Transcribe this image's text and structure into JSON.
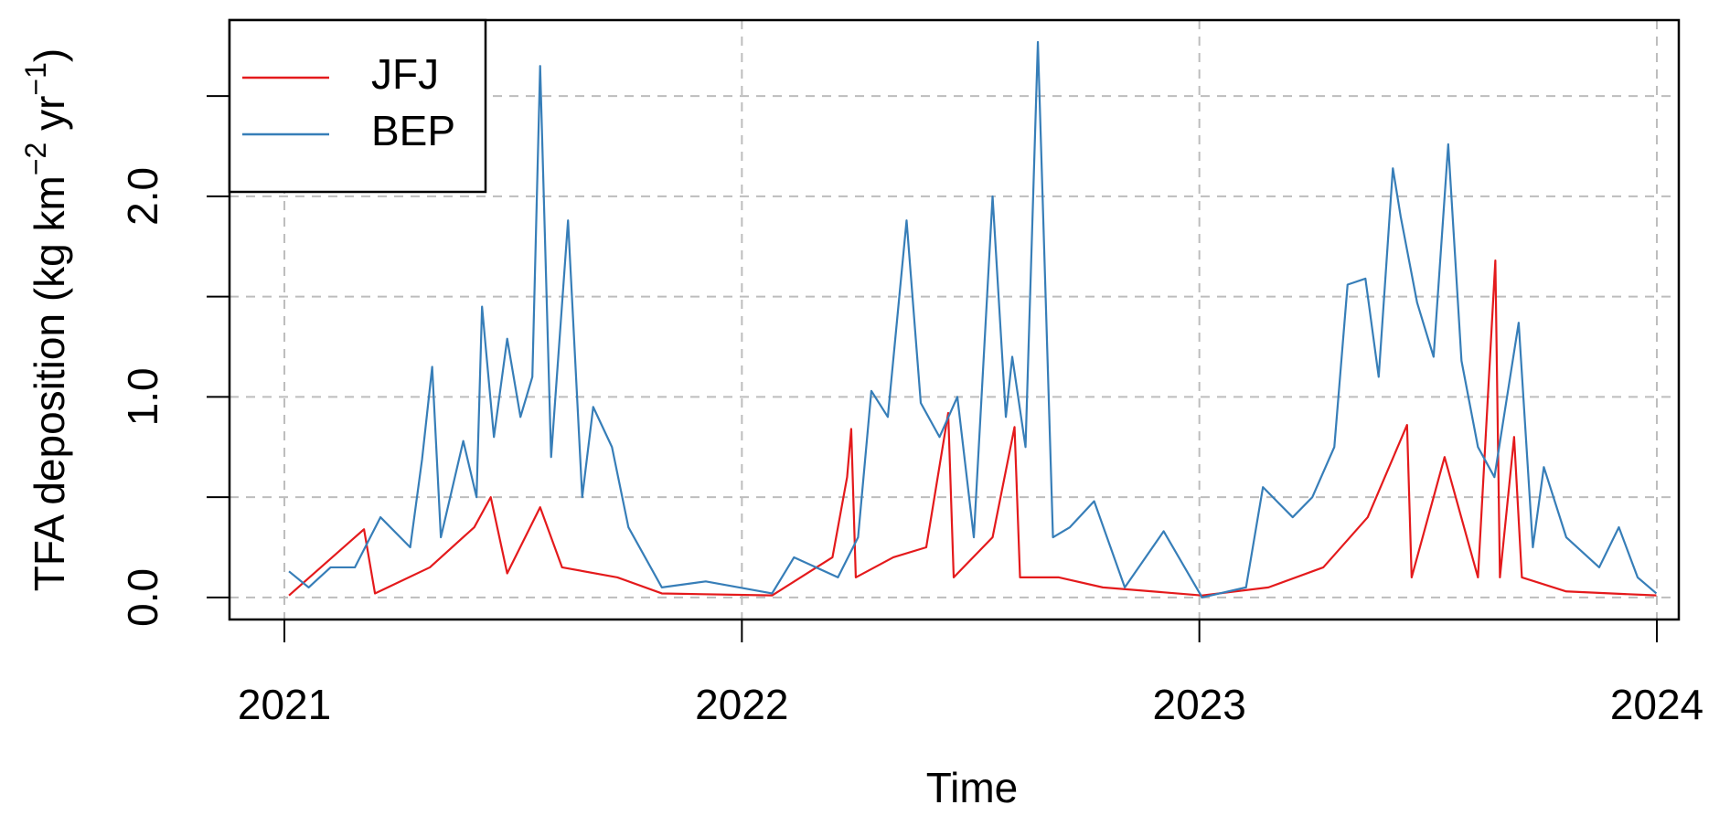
{
  "chart_data": {
    "type": "line",
    "xlabel": "Time",
    "ylabel": {
      "text": "TFA deposition (kg km",
      "sup1": "−2",
      "mid": " yr",
      "sup2": "−1",
      "end": ")"
    },
    "xlim": [
      2020.88,
      2024.048
    ],
    "xticks": [
      2021,
      2022,
      2023,
      2024
    ],
    "ylim": [
      -0.11,
      2.879
    ],
    "yticks": [
      {
        "value": 0,
        "label": "0.0"
      },
      {
        "value": 1,
        "label": "1.0"
      },
      {
        "value": 2,
        "label": "2.0"
      }
    ],
    "yticks_unlabeled": [
      0.5,
      1.5,
      2.5
    ],
    "grid": true,
    "legend": "top-left",
    "series": [
      {
        "name": "JFJ",
        "color": "#e41a1c",
        "x": [
          2021.01,
          2021.174,
          2021.198,
          2021.318,
          2021.415,
          2021.451,
          2021.487,
          2021.559,
          2021.607,
          2021.728,
          2021.825,
          2022.066,
          2022.198,
          2022.23,
          2022.239,
          2022.249,
          2022.331,
          2022.403,
          2022.451,
          2022.463,
          2022.548,
          2022.596,
          2022.608,
          2022.693,
          2022.789,
          2023.006,
          2023.151,
          2023.271,
          2023.368,
          2023.454,
          2023.464,
          2023.536,
          2023.609,
          2023.647,
          2023.657,
          2023.688,
          2023.705,
          2023.802,
          2023.999
        ],
        "values": [
          0.01,
          0.34,
          0.02,
          0.15,
          0.35,
          0.5,
          0.12,
          0.45,
          0.15,
          0.1,
          0.02,
          0.01,
          0.2,
          0.6,
          0.84,
          0.1,
          0.2,
          0.25,
          0.92,
          0.1,
          0.3,
          0.85,
          0.1,
          0.1,
          0.05,
          0.01,
          0.05,
          0.15,
          0.4,
          0.86,
          0.1,
          0.7,
          0.1,
          1.68,
          0.1,
          0.8,
          0.1,
          0.03,
          0.01
        ]
      },
      {
        "name": "BEP",
        "color": "#377eb8",
        "x": [
          2021.01,
          2021.053,
          2021.101,
          2021.154,
          2021.21,
          2021.275,
          2021.301,
          2021.323,
          2021.342,
          2021.391,
          2021.42,
          2021.432,
          2021.458,
          2021.487,
          2021.516,
          2021.542,
          2021.559,
          2021.583,
          2021.62,
          2021.651,
          2021.675,
          2021.716,
          2021.752,
          2021.825,
          2021.921,
          2022.066,
          2022.114,
          2022.21,
          2022.254,
          2022.283,
          2022.319,
          2022.36,
          2022.391,
          2022.432,
          2022.471,
          2022.507,
          2022.548,
          2022.577,
          2022.591,
          2022.62,
          2022.647,
          2022.68,
          2022.717,
          2022.77,
          2022.837,
          2022.922,
          2023.006,
          2023.102,
          2023.139,
          2023.204,
          2023.247,
          2023.295,
          2023.324,
          2023.363,
          2023.392,
          2023.423,
          2023.44,
          2023.476,
          2023.512,
          2023.544,
          2023.573,
          2023.609,
          2023.645,
          2023.698,
          2023.729,
          2023.753,
          2023.802,
          2023.874,
          2023.917,
          2023.958,
          2023.999
        ],
        "values": [
          0.13,
          0.05,
          0.15,
          0.15,
          0.4,
          0.25,
          0.69,
          1.15,
          0.3,
          0.78,
          0.5,
          1.45,
          0.8,
          1.29,
          0.9,
          1.1,
          2.65,
          0.7,
          1.88,
          0.5,
          0.95,
          0.75,
          0.35,
          0.05,
          0.08,
          0.02,
          0.2,
          0.1,
          0.3,
          1.03,
          0.9,
          1.88,
          0.97,
          0.8,
          1.0,
          0.3,
          2.0,
          0.9,
          1.2,
          0.75,
          2.77,
          0.3,
          0.35,
          0.48,
          0.05,
          0.33,
          0.0,
          0.05,
          0.55,
          0.4,
          0.5,
          0.75,
          1.56,
          1.59,
          1.1,
          2.14,
          1.9,
          1.47,
          1.2,
          2.26,
          1.18,
          0.75,
          0.6,
          1.37,
          0.25,
          0.65,
          0.3,
          0.15,
          0.35,
          0.1,
          0.02
        ]
      }
    ]
  }
}
